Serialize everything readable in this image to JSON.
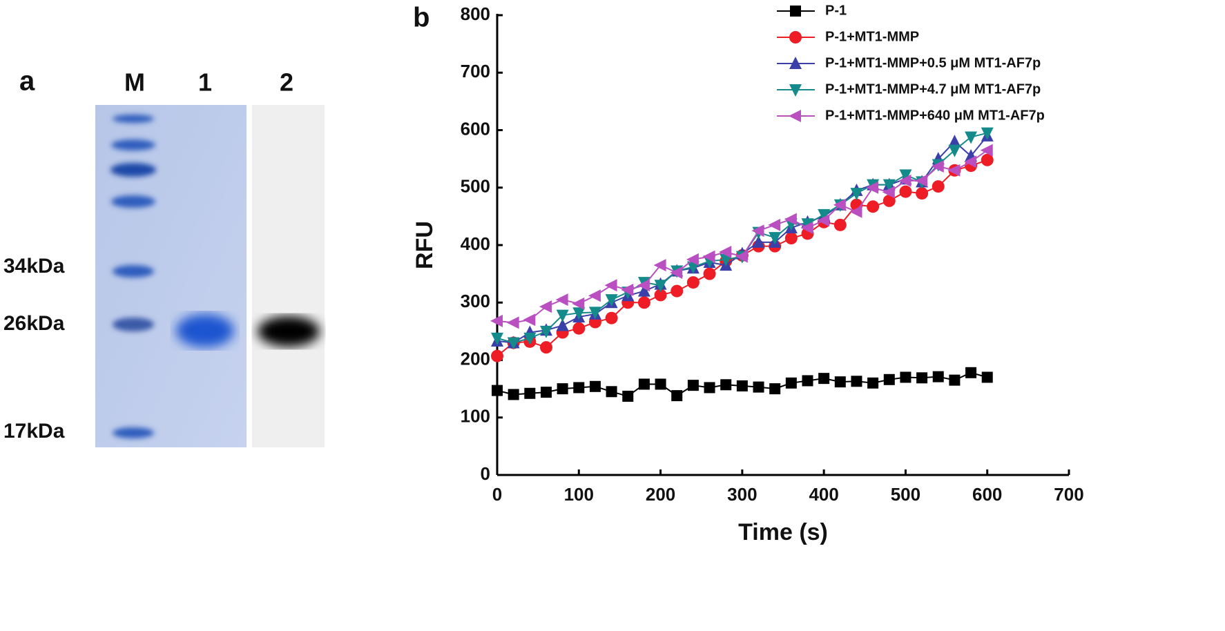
{
  "gel": {
    "panel_label": "a",
    "lanes": [
      "M",
      "1",
      "2"
    ],
    "markers": [
      "34kDa",
      "26kDa",
      "17kDa"
    ]
  },
  "panel_label": "b",
  "chart_data": {
    "type": "line",
    "xlabel": "Time (s)",
    "ylabel": "RFU",
    "x": [
      0,
      20,
      40,
      60,
      80,
      100,
      120,
      140,
      160,
      180,
      200,
      220,
      240,
      260,
      280,
      300,
      320,
      340,
      360,
      380,
      400,
      420,
      440,
      460,
      480,
      500,
      520,
      540,
      560,
      580,
      600
    ],
    "series": [
      {
        "name": "P-1",
        "color": "#000000",
        "marker": "square",
        "values": [
          147,
          140,
          142,
          144,
          150,
          152,
          154,
          145,
          137,
          158,
          158,
          138,
          156,
          152,
          157,
          155,
          153,
          150,
          160,
          164,
          168,
          162,
          163,
          160,
          166,
          170,
          169,
          171,
          165,
          178,
          170
        ]
      },
      {
        "name": "P-1+MT1-MMP",
        "color": "#ee1c25",
        "marker": "circle",
        "values": [
          207,
          230,
          232,
          222,
          248,
          255,
          266,
          273,
          300,
          300,
          313,
          320,
          335,
          350,
          372,
          382,
          398,
          398,
          412,
          420,
          440,
          435,
          470,
          467,
          477,
          493,
          490,
          502,
          530,
          538,
          548
        ]
      },
      {
        "name": "P-1+MT1-MMP+0.5 μM MT1-AF7p",
        "color": "#3b3fa8",
        "marker": "triangle-up",
        "values": [
          233,
          230,
          248,
          252,
          260,
          275,
          280,
          300,
          312,
          320,
          332,
          355,
          360,
          370,
          365,
          385,
          405,
          405,
          430,
          440,
          450,
          470,
          495,
          505,
          505,
          515,
          510,
          550,
          580,
          555,
          590
        ]
      },
      {
        "name": "P-1+MT1-MMP+4.7 μM MT1-AF7p",
        "color": "#148a8a",
        "marker": "triangle-down",
        "values": [
          238,
          230,
          238,
          250,
          278,
          282,
          283,
          305,
          318,
          335,
          330,
          355,
          362,
          372,
          375,
          380,
          422,
          413,
          437,
          437,
          453,
          470,
          490,
          505,
          505,
          522,
          510,
          540,
          565,
          588,
          595
        ]
      },
      {
        "name": "P-1+MT1-MMP+640 μM MT1-AF7p",
        "color": "#b94fc0",
        "marker": "triangle-left",
        "values": [
          268,
          265,
          270,
          293,
          305,
          298,
          312,
          330,
          322,
          330,
          365,
          352,
          375,
          380,
          388,
          380,
          425,
          435,
          445,
          430,
          443,
          470,
          458,
          500,
          492,
          512,
          512,
          537,
          530,
          545,
          565
        ]
      }
    ],
    "xlim": [
      0,
      700
    ],
    "xticks": [
      0,
      100,
      200,
      300,
      400,
      500,
      600,
      700
    ],
    "ylim": [
      0,
      800
    ],
    "yticks": [
      0,
      100,
      200,
      300,
      400,
      500,
      600,
      700,
      800
    ],
    "legend": "upper right"
  }
}
